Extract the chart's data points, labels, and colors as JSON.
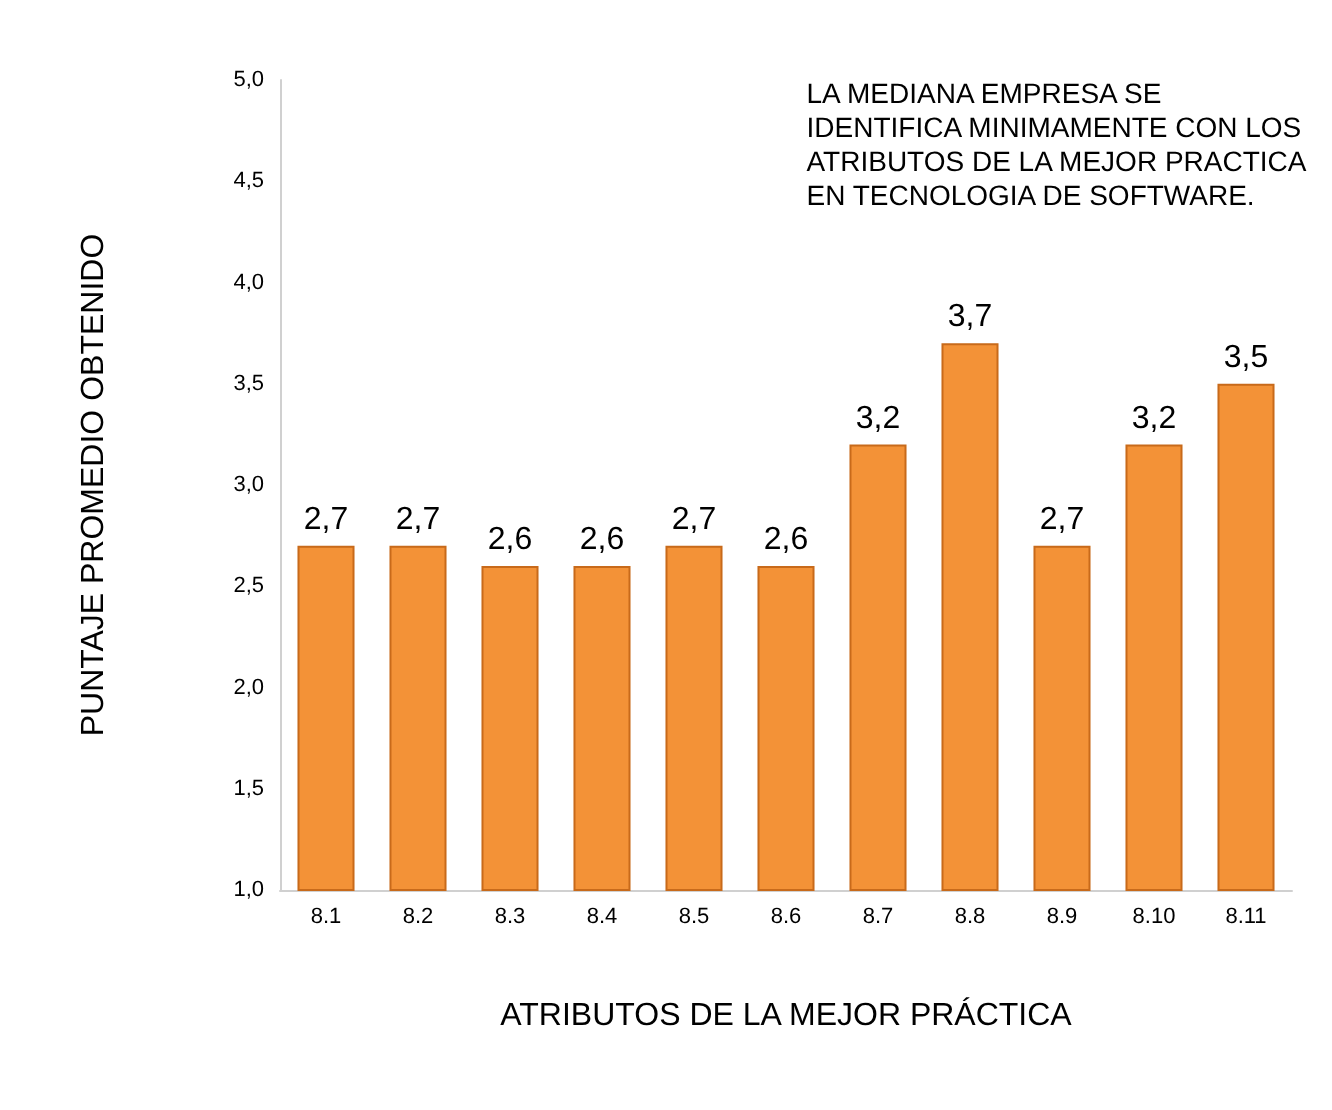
{
  "chart_data": {
    "type": "bar",
    "xlabel": "ATRIBUTOS DE LA MEJOR PRÁCTICA",
    "ylabel": "PUNTAJE PROMEDIO OBTENIDO",
    "annotations": [
      "LA MEDIANA EMPRESA SE\nIDENTIFICA MINIMAMENTE CON LOS\nATRIBUTOS DE LA MEJOR PRACTICA\nEN TECNOLOGIA DE SOFTWARE."
    ],
    "categories": [
      "8.1",
      "8.2",
      "8.3",
      "8.4",
      "8.5",
      "8.6",
      "8.7",
      "8.8",
      "8.9",
      "8.10",
      "8.11"
    ],
    "values": [
      2.7,
      2.7,
      2.6,
      2.6,
      2.7,
      2.6,
      3.2,
      3.7,
      2.7,
      3.2,
      3.5
    ],
    "value_labels": [
      "2,7",
      "2,7",
      "2,6",
      "2,6",
      "2,7",
      "2,6",
      "3,2",
      "3,7",
      "2,7",
      "3,2",
      "3,5"
    ],
    "color": "#f39237",
    "ylim": [
      1,
      5
    ],
    "yticks": [
      {
        "value": 1,
        "label": "1,0"
      },
      {
        "value": 1.5,
        "label": "1,5"
      },
      {
        "value": 2,
        "label": "2,0"
      },
      {
        "value": 2.5,
        "label": "2,5"
      },
      {
        "value": 3,
        "label": "3,0"
      },
      {
        "value": 3.5,
        "label": "3,5"
      },
      {
        "value": 4,
        "label": "4,0"
      },
      {
        "value": 4.5,
        "label": "4,5"
      },
      {
        "value": 5,
        "label": "5,0"
      }
    ],
    "grid": false
  }
}
